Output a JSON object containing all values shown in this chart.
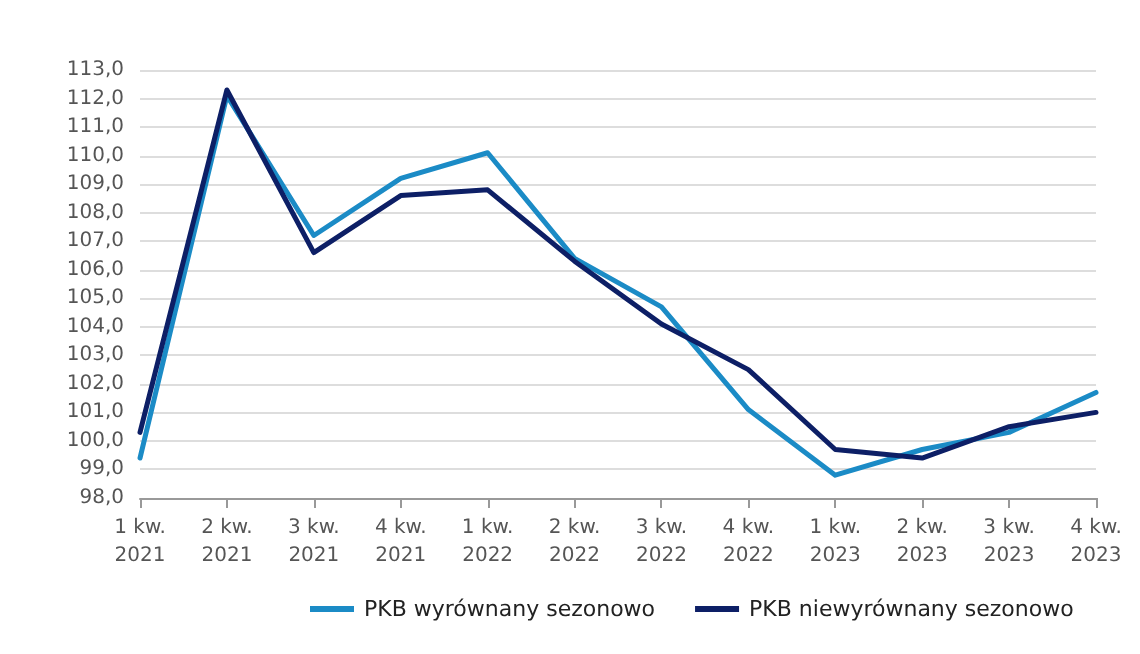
{
  "chart_data": {
    "type": "line",
    "categories": [
      "1 kw.\n2021",
      "2 kw.\n2021",
      "3 kw.\n2021",
      "4 kw.\n2021",
      "1 kw.\n2022",
      "2 kw.\n2022",
      "3 kw.\n2022",
      "4 kw.\n2022",
      "1 kw.\n2023",
      "2 kw.\n2023",
      "3 kw.\n2023",
      "4 kw.\n2023"
    ],
    "series": [
      {
        "name": "PKB wyrównany sezonowo",
        "color": "#1b8bc6",
        "values": [
          99.4,
          112.1,
          107.2,
          109.2,
          110.1,
          106.4,
          104.7,
          101.1,
          98.8,
          99.7,
          100.3,
          101.7
        ]
      },
      {
        "name": "PKB niewyrównany sezonowo",
        "color": "#0d1f66",
        "values": [
          100.3,
          112.3,
          106.6,
          108.6,
          108.8,
          106.3,
          104.1,
          102.5,
          99.7,
          99.4,
          100.5,
          101.0
        ]
      }
    ],
    "ylim": [
      98,
      113
    ],
    "yticks": [
      {
        "value": 98,
        "label": "98,0"
      },
      {
        "value": 99,
        "label": "99,0"
      },
      {
        "value": 100,
        "label": "100,0"
      },
      {
        "value": 101,
        "label": "101,0"
      },
      {
        "value": 102,
        "label": "102,0"
      },
      {
        "value": 103,
        "label": "103,0"
      },
      {
        "value": 104,
        "label": "104,0"
      },
      {
        "value": 105,
        "label": "105,0"
      },
      {
        "value": 106,
        "label": "106,0"
      },
      {
        "value": 107,
        "label": "107,0"
      },
      {
        "value": 108,
        "label": "108,0"
      },
      {
        "value": 109,
        "label": "109,0"
      },
      {
        "value": 110,
        "label": "110,0"
      },
      {
        "value": 111,
        "label": "111,0"
      },
      {
        "value": 112,
        "label": "112,0"
      },
      {
        "value": 113,
        "label": "113,0"
      }
    ],
    "grid": "y",
    "legend": "bottom",
    "marker": "none",
    "line_style": "solid"
  }
}
